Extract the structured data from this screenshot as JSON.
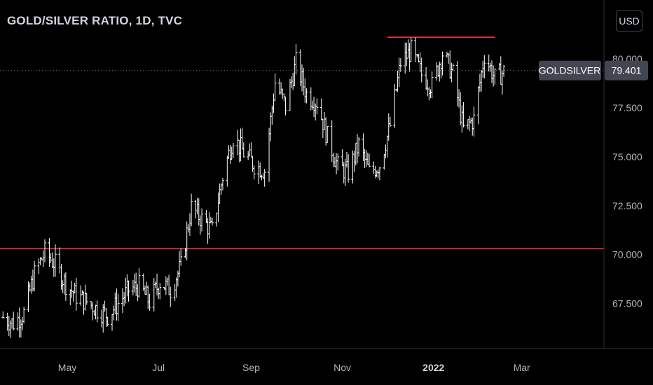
{
  "header": {
    "title": "GOLD/SILVER RATIO, 1D, TVC",
    "currency_button": "USD"
  },
  "colors": {
    "background": "#000000",
    "candle": "#ffffff",
    "level_line": "#f23645",
    "price_tag_bg": "#434651",
    "axis_border": "#2a2e39"
  },
  "chart_data": {
    "type": "ohlc",
    "title": "GOLD/SILVER RATIO, 1D, TVC",
    "symbol": "GOLDSILVER",
    "last_price": "79.401",
    "ylim": [
      65.2,
      83.0
    ],
    "y_ticks": [
      "67.500",
      "70.000",
      "72.500",
      "75.000",
      "77.500",
      "80.000"
    ],
    "x_ticks": [
      {
        "label": "May",
        "date": "2021-05-01",
        "bold": false
      },
      {
        "label": "Jul",
        "date": "2021-07-01",
        "bold": false
      },
      {
        "label": "Sep",
        "date": "2021-09-01",
        "bold": false
      },
      {
        "label": "Nov",
        "date": "2021-11-01",
        "bold": false
      },
      {
        "label": "2022",
        "date": "2022-01-01",
        "bold": true
      },
      {
        "label": "Mar",
        "date": "2022-03-01",
        "bold": false
      }
    ],
    "xlim": [
      "2021-03-17",
      "2022-04-25"
    ],
    "levels": [
      {
        "value": 70.3,
        "from": "2021-03-17",
        "to": "2022-04-25"
      },
      {
        "value": 81.1,
        "from": "2021-12-01",
        "to": "2022-02-11"
      }
    ],
    "close_series": [
      [
        "2021-03-19",
        66.8
      ],
      [
        "2021-03-26",
        66.5
      ],
      [
        "2021-04-02",
        67.0
      ],
      [
        "2021-04-09",
        69.0
      ],
      [
        "2021-04-16",
        70.1
      ],
      [
        "2021-04-23",
        69.5
      ],
      [
        "2021-04-30",
        68.5
      ],
      [
        "2021-05-07",
        67.9
      ],
      [
        "2021-05-14",
        67.6
      ],
      [
        "2021-05-21",
        67.2
      ],
      [
        "2021-05-28",
        66.9
      ],
      [
        "2021-06-04",
        67.5
      ],
      [
        "2021-06-11",
        68.2
      ],
      [
        "2021-06-18",
        68.4
      ],
      [
        "2021-06-25",
        67.6
      ],
      [
        "2021-07-02",
        68.6
      ],
      [
        "2021-07-09",
        68.2
      ],
      [
        "2021-07-16",
        69.4
      ],
      [
        "2021-07-23",
        72.4
      ],
      [
        "2021-07-30",
        71.8
      ],
      [
        "2021-08-06",
        71.2
      ],
      [
        "2021-08-13",
        74.0
      ],
      [
        "2021-08-20",
        76.0
      ],
      [
        "2021-08-27",
        75.2
      ],
      [
        "2021-09-03",
        74.6
      ],
      [
        "2021-09-10",
        74.3
      ],
      [
        "2021-09-17",
        78.8
      ],
      [
        "2021-09-24",
        77.6
      ],
      [
        "2021-10-01",
        79.8
      ],
      [
        "2021-10-08",
        78.2
      ],
      [
        "2021-10-15",
        77.8
      ],
      [
        "2021-10-22",
        76.0
      ],
      [
        "2021-10-29",
        74.5
      ],
      [
        "2021-11-05",
        74.2
      ],
      [
        "2021-11-12",
        75.6
      ],
      [
        "2021-11-19",
        74.2
      ],
      [
        "2021-11-26",
        74.6
      ],
      [
        "2021-12-03",
        76.6
      ],
      [
        "2021-12-10",
        79.8
      ],
      [
        "2021-12-17",
        80.4
      ],
      [
        "2021-12-24",
        79.2
      ],
      [
        "2021-12-31",
        78.6
      ],
      [
        "2022-01-07",
        80.3
      ],
      [
        "2022-01-14",
        79.2
      ],
      [
        "2022-01-21",
        76.4
      ],
      [
        "2022-01-28",
        76.9
      ],
      [
        "2022-02-04",
        80.2
      ],
      [
        "2022-02-11",
        79.0
      ],
      [
        "2022-02-18",
        79.4
      ]
    ]
  },
  "price_tag": {
    "symbol": "GOLDSILVER",
    "value": "79.401"
  }
}
